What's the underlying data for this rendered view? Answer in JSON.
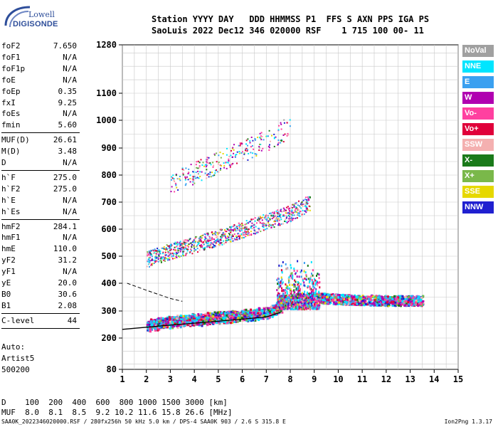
{
  "logo": {
    "lowell": "Lowell",
    "digisonde": "DIGISONDE"
  },
  "header": {
    "line1": "Station YYYY DAY   DDD HHMMSS P1  FFS S AXN PPS IGA PS",
    "line2": "SaoLuis 2022 Dec12 346 020000 RSF    1 715 100 00- 11"
  },
  "params": [
    {
      "label": "foF2",
      "value": "7.650"
    },
    {
      "label": "foF1",
      "value": "N/A"
    },
    {
      "label": "foF1p",
      "value": "N/A"
    },
    {
      "label": "foE",
      "value": "N/A"
    },
    {
      "label": "foEp",
      "value": "0.35"
    },
    {
      "label": "fxI",
      "value": "9.25"
    },
    {
      "label": "foEs",
      "value": "N/A"
    },
    {
      "label": "fmin",
      "value": "5.60"
    },
    {
      "label": "MUF(D)",
      "value": "26.61"
    },
    {
      "label": "M(D)",
      "value": "3.48"
    },
    {
      "label": "D",
      "value": "N/A"
    },
    {
      "label": "h`F",
      "value": "275.0"
    },
    {
      "label": "h`F2",
      "value": "275.0"
    },
    {
      "label": "h`E",
      "value": "N/A"
    },
    {
      "label": "h`Es",
      "value": "N/A"
    },
    {
      "label": "hmF2",
      "value": "284.1"
    },
    {
      "label": "hmF1",
      "value": "N/A"
    },
    {
      "label": "hmE",
      "value": "110.0"
    },
    {
      "label": "yF2",
      "value": "31.2"
    },
    {
      "label": "yF1",
      "value": "N/A"
    },
    {
      "label": "yE",
      "value": "20.0"
    },
    {
      "label": "B0",
      "value": "30.6"
    },
    {
      "label": "B1",
      "value": "2.08"
    },
    {
      "label": "C-level",
      "value": "44"
    }
  ],
  "auto": {
    "line1": "Auto:",
    "line2": "Artist5",
    "line3": "500200"
  },
  "bottom": {
    "d_row": "D    100  200  400  600  800 1000 1500 3000 [km]",
    "muf_row": "MUF  8.0  8.1  8.5  9.2 10.2 11.6 15.8 26.6 [MHz]"
  },
  "footer": {
    "left": "SAA0K_2022346020000.RSF / 280fx256h 50 kHz 5.0 km / DPS-4 SAA0K 903 / 2.6 S 315.8 E",
    "right": "Ion2Png 1.3.17"
  },
  "legend": [
    {
      "label": "NoVal",
      "color": "#a0a0a0"
    },
    {
      "label": "NNE",
      "color": "#00e5ff"
    },
    {
      "label": "E",
      "color": "#3aa0f0"
    },
    {
      "label": "W",
      "color": "#b000b0"
    },
    {
      "label": "Vo-",
      "color": "#ff40a0"
    },
    {
      "label": "Vo+",
      "color": "#e0003a"
    },
    {
      "label": "SSW",
      "color": "#f4b0b0"
    },
    {
      "label": "X-",
      "color": "#1a7a1a"
    },
    {
      "label": "X+",
      "color": "#7ab84a"
    },
    {
      "label": "SSE",
      "color": "#e6d800"
    },
    {
      "label": "NNW",
      "color": "#2020d0"
    }
  ],
  "chart_data": {
    "type": "scatter",
    "x_ticks": [
      1,
      2,
      3,
      4,
      5,
      6,
      7,
      8,
      9,
      10,
      11,
      12,
      13,
      14,
      15
    ],
    "y_ticks": [
      80,
      200,
      300,
      400,
      500,
      600,
      700,
      800,
      900,
      1000,
      1100,
      1280
    ],
    "xlim": [
      1,
      15
    ],
    "ylim": [
      80,
      1280
    ],
    "grid": true,
    "legend_position": "right",
    "traces": [
      {
        "name": "F2 trace",
        "points": [
          [
            2.0,
            250
          ],
          [
            3.0,
            262
          ],
          [
            4.0,
            270
          ],
          [
            5.0,
            278
          ],
          [
            6.0,
            286
          ],
          [
            7.0,
            296
          ],
          [
            7.65,
            320
          ]
        ]
      },
      {
        "name": "F2 second hop",
        "points": [
          [
            2.0,
            490
          ],
          [
            3.0,
            520
          ],
          [
            4.0,
            545
          ],
          [
            5.0,
            570
          ],
          [
            6.0,
            600
          ],
          [
            7.0,
            630
          ],
          [
            8.0,
            660
          ],
          [
            8.8,
            700
          ]
        ]
      },
      {
        "name": "F2 third hop",
        "points": [
          [
            3.0,
            770
          ],
          [
            4.0,
            810
          ],
          [
            5.0,
            850
          ],
          [
            6.0,
            890
          ],
          [
            7.0,
            930
          ],
          [
            8.0,
            980
          ]
        ]
      },
      {
        "name": "spread F",
        "points": [
          [
            7.5,
            340
          ],
          [
            8.0,
            345
          ],
          [
            9.0,
            350
          ],
          [
            10.0,
            345
          ],
          [
            11.0,
            342
          ],
          [
            12.0,
            340
          ],
          [
            13.0,
            340
          ],
          [
            13.5,
            340
          ]
        ]
      }
    ],
    "model_profile": [
      [
        1,
        232
      ],
      [
        2,
        240
      ],
      [
        3,
        248
      ],
      [
        4,
        255
      ],
      [
        5,
        262
      ],
      [
        6,
        270
      ],
      [
        7,
        278
      ],
      [
        7.6,
        295
      ]
    ],
    "dashed_profile": [
      [
        1.2,
        400
      ],
      [
        2.0,
        375
      ],
      [
        3.0,
        345
      ],
      [
        3.5,
        335
      ]
    ]
  }
}
